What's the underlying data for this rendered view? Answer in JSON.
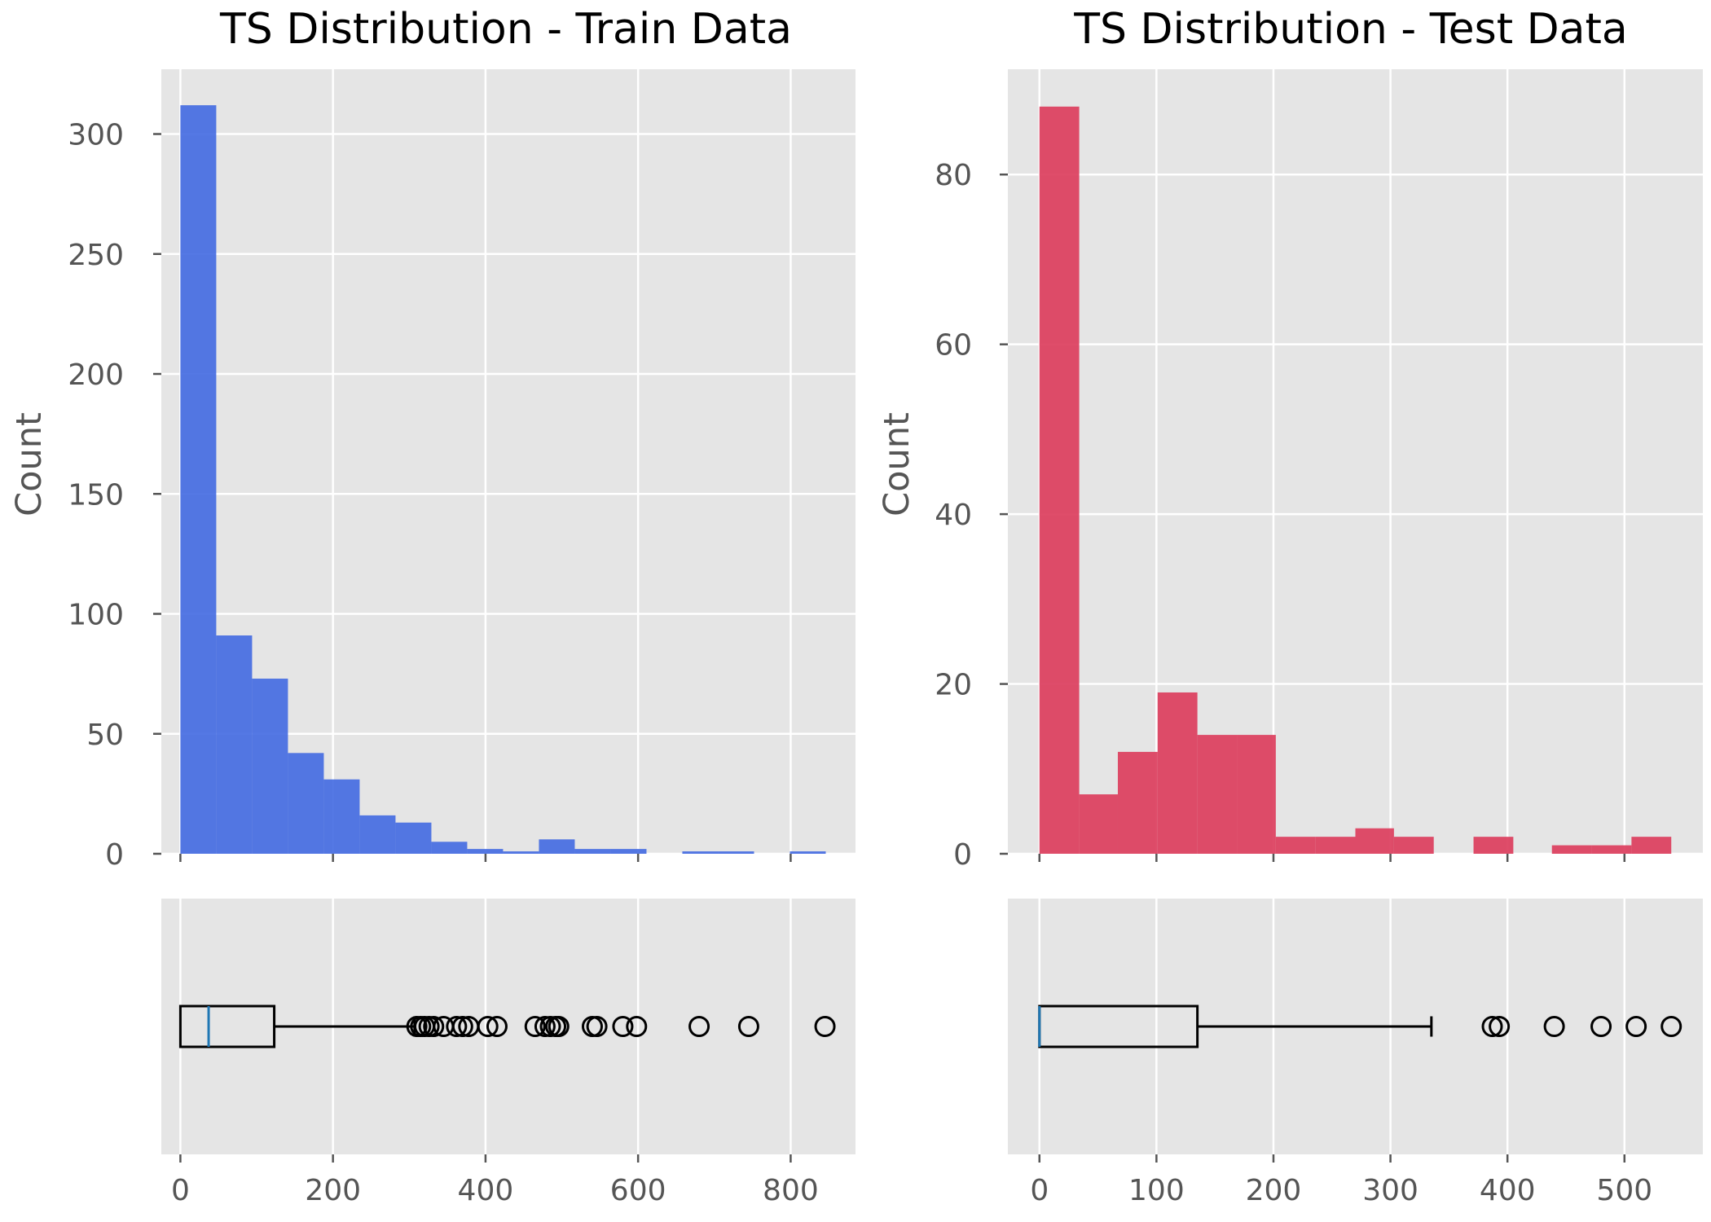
{
  "chart_data": [
    {
      "type": "bar",
      "title": "TS Distribution - Train Data",
      "xlabel": "",
      "ylabel": "Count",
      "color": "#4169e1",
      "xlim": [
        -25,
        885
      ],
      "ylim": [
        0,
        327
      ],
      "xticks": [
        0,
        200,
        400,
        600,
        800
      ],
      "yticks": [
        0,
        50,
        100,
        150,
        200,
        250,
        300
      ],
      "grid": true,
      "bins": [
        {
          "x0": 0,
          "x1": 47,
          "count": 312
        },
        {
          "x0": 47,
          "x1": 94,
          "count": 91
        },
        {
          "x0": 94,
          "x1": 141,
          "count": 73
        },
        {
          "x0": 141,
          "x1": 188,
          "count": 42
        },
        {
          "x0": 188,
          "x1": 235,
          "count": 31
        },
        {
          "x0": 235,
          "x1": 282,
          "count": 16
        },
        {
          "x0": 282,
          "x1": 329,
          "count": 13
        },
        {
          "x0": 329,
          "x1": 376,
          "count": 5
        },
        {
          "x0": 376,
          "x1": 423,
          "count": 2
        },
        {
          "x0": 423,
          "x1": 470,
          "count": 1
        },
        {
          "x0": 470,
          "x1": 517,
          "count": 6
        },
        {
          "x0": 517,
          "x1": 564,
          "count": 2
        },
        {
          "x0": 564,
          "x1": 611,
          "count": 2
        },
        {
          "x0": 658,
          "x1": 705,
          "count": 1
        },
        {
          "x0": 705,
          "x1": 752,
          "count": 1
        },
        {
          "x0": 799,
          "x1": 846,
          "count": 1
        }
      ],
      "boxplot": {
        "min": 0,
        "q1": 0,
        "median": 37,
        "q3": 123,
        "whisker_low": 0,
        "whisker_high": 307,
        "outliers": [
          310,
          315,
          320,
          326,
          332,
          345,
          362,
          370,
          378,
          403,
          415,
          465,
          478,
          485,
          492,
          496,
          540,
          546,
          580,
          598,
          680,
          745,
          845
        ]
      }
    },
    {
      "type": "bar",
      "title": "TS Distribution - Test Data",
      "xlabel": "",
      "ylabel": "Count",
      "color": "#dc3a5a",
      "xlim": [
        -27,
        567
      ],
      "ylim": [
        0,
        92.4
      ],
      "xticks": [
        0,
        100,
        200,
        300,
        400,
        500
      ],
      "yticks": [
        0,
        20,
        40,
        60,
        80
      ],
      "grid": true,
      "bins": [
        {
          "x0": 0,
          "x1": 34,
          "count": 88
        },
        {
          "x0": 34,
          "x1": 67,
          "count": 7
        },
        {
          "x0": 67,
          "x1": 101,
          "count": 12
        },
        {
          "x0": 101,
          "x1": 135,
          "count": 19
        },
        {
          "x0": 135,
          "x1": 169,
          "count": 14
        },
        {
          "x0": 169,
          "x1": 202,
          "count": 14
        },
        {
          "x0": 202,
          "x1": 236,
          "count": 2
        },
        {
          "x0": 236,
          "x1": 270,
          "count": 2
        },
        {
          "x0": 270,
          "x1": 303,
          "count": 3
        },
        {
          "x0": 303,
          "x1": 337,
          "count": 2
        },
        {
          "x0": 371,
          "x1": 405,
          "count": 2
        },
        {
          "x0": 438,
          "x1": 472,
          "count": 1
        },
        {
          "x0": 472,
          "x1": 506,
          "count": 1
        },
        {
          "x0": 506,
          "x1": 540,
          "count": 2
        }
      ],
      "boxplot": {
        "min": 0,
        "q1": 0,
        "median": 0,
        "q3": 135,
        "whisker_low": 0,
        "whisker_high": 335,
        "outliers": [
          387,
          393,
          440,
          480,
          510,
          540
        ]
      }
    }
  ]
}
